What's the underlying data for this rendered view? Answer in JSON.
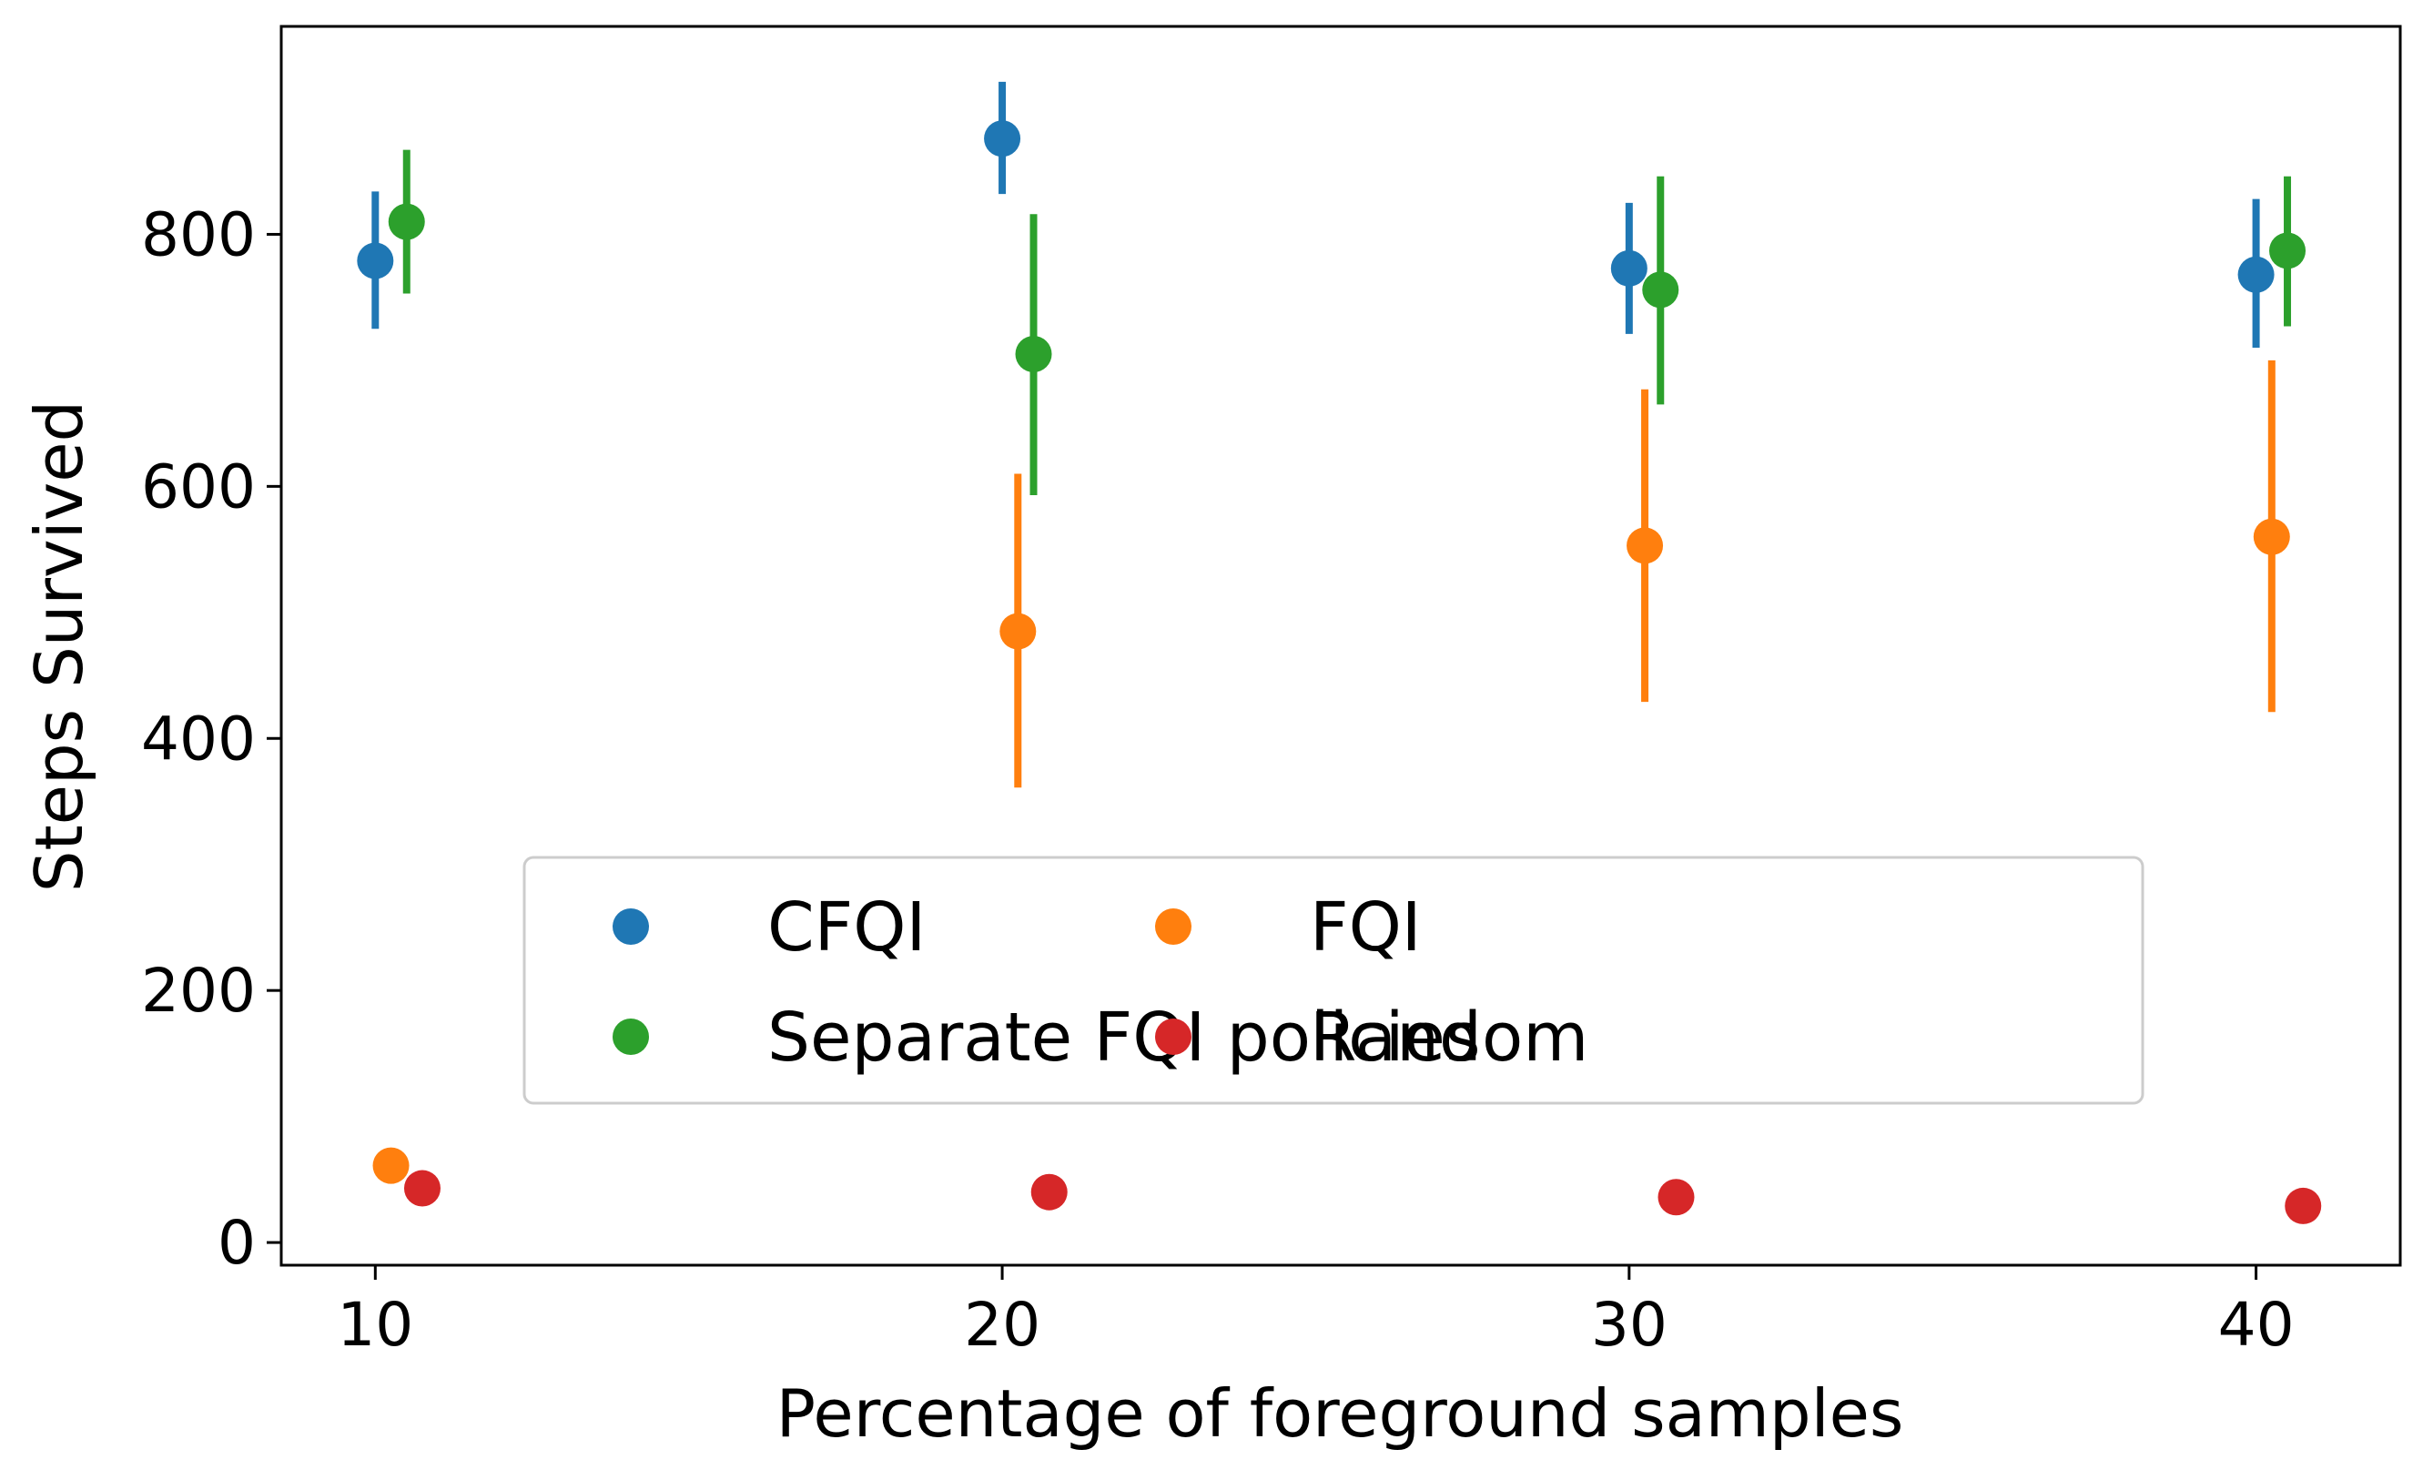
{
  "chart_data": {
    "type": "scatter",
    "title": "",
    "xlabel": "Percentage of foreground samples",
    "ylabel": "Steps Survived",
    "x_ticks": [
      10,
      20,
      30,
      40
    ],
    "y_ticks": [
      0,
      200,
      400,
      600,
      800
    ],
    "xlim": [
      8.5,
      42.3
    ],
    "ylim": [
      -18,
      965
    ],
    "grid": false,
    "legend": {
      "placement": "lower-center",
      "columns": 2
    },
    "series": [
      {
        "name": "CFQI",
        "color": "#1f77b4",
        "points": [
          {
            "x": 10,
            "y": 779,
            "lo": 725,
            "hi": 834
          },
          {
            "x": 20,
            "y": 876,
            "lo": 832,
            "hi": 921
          },
          {
            "x": 30,
            "y": 773,
            "lo": 721,
            "hi": 825
          },
          {
            "x": 40,
            "y": 768,
            "lo": 710,
            "hi": 828
          }
        ]
      },
      {
        "name": "FQI",
        "color": "#ff7f0e",
        "points": [
          {
            "x": 10,
            "y": 61
          },
          {
            "x": 20,
            "y": 485,
            "lo": 361,
            "hi": 610
          },
          {
            "x": 30,
            "y": 553,
            "lo": 429,
            "hi": 677
          },
          {
            "x": 40,
            "y": 560,
            "lo": 421,
            "hi": 700
          }
        ]
      },
      {
        "name": "Separate FQI policies",
        "color": "#2ca02c",
        "points": [
          {
            "x": 10,
            "y": 810,
            "lo": 753,
            "hi": 867
          },
          {
            "x": 20,
            "y": 705,
            "lo": 593,
            "hi": 816
          },
          {
            "x": 30,
            "y": 756,
            "lo": 665,
            "hi": 846
          },
          {
            "x": 40,
            "y": 787,
            "lo": 727,
            "hi": 846
          }
        ]
      },
      {
        "name": "Random",
        "color": "#d62728",
        "points": [
          {
            "x": 10,
            "y": 43
          },
          {
            "x": 20,
            "y": 40
          },
          {
            "x": 30,
            "y": 36
          },
          {
            "x": 40,
            "y": 29
          }
        ]
      }
    ]
  }
}
